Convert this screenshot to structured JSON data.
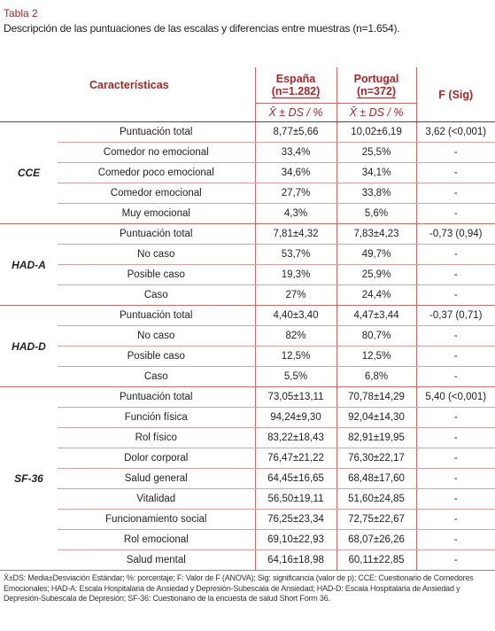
{
  "caption": {
    "label": "Tabla 2",
    "title": "Descripción de las puntuaciones de las escalas y diferencias entre muestras (n=1.654)."
  },
  "table": {
    "header": {
      "characteristics": "Características",
      "spain": "España",
      "spain_n": "(n=1.282)",
      "portugal": "Portugal",
      "portugal_n": "(n=372)",
      "f": "F (Sig)",
      "stat_spain": "X̄ ± DS / %",
      "stat_portugal": "X̄ ± DS / %"
    },
    "groups": [
      {
        "label": "CCE",
        "rows": [
          [
            "Puntuación total",
            "8,77±5,66",
            "10,02±6,19",
            "3,62 (<0,001)"
          ],
          [
            "Comedor no emocional",
            "33,4%",
            "25,5%",
            "-"
          ],
          [
            "Comedor poco emocional",
            "34,6%",
            "34,1%",
            "-"
          ],
          [
            "Comedor emocional",
            "27,7%",
            "33,8%",
            "-"
          ],
          [
            "Muy emocional",
            "4,3%",
            "5,6%",
            "-"
          ]
        ]
      },
      {
        "label": "HAD-A",
        "rows": [
          [
            "Puntuación total",
            "7,81±4,32",
            "7,83±4,23",
            "-0,73 (0,94)"
          ],
          [
            "No caso",
            "53,7%",
            "49,7%",
            "-"
          ],
          [
            "Posible caso",
            "19,3%",
            "25,9%",
            "-"
          ],
          [
            "Caso",
            "27%",
            "24,4%",
            "-"
          ]
        ]
      },
      {
        "label": "HAD-D",
        "rows": [
          [
            "Puntuación total",
            "4,40±3,40",
            "4,47±3,44",
            "-0,37 (0,71)"
          ],
          [
            "No caso",
            "82%",
            "80,7%",
            "-"
          ],
          [
            "Posible caso",
            "12,5%",
            "12,5%",
            "-"
          ],
          [
            "Caso",
            "5,5%",
            "6,8%",
            "-"
          ]
        ]
      },
      {
        "label": "SF-36",
        "rows": [
          [
            "Puntuación total",
            "73,05±13,11",
            "70,78±14,29",
            "5,40 (<0,001)"
          ],
          [
            "Función física",
            "94,24±9,30",
            "92,04±14,30",
            "-"
          ],
          [
            "Rol físico",
            "83,22±18,43",
            "82,91±19,95",
            "-"
          ],
          [
            "Dolor corporal",
            "76,47±21,22",
            "76,30±22,17",
            "-"
          ],
          [
            "Salud general",
            "64,45±16,65",
            "68,48±17,60",
            "-"
          ],
          [
            "Vitalidad",
            "56,50±19,11",
            "51,60±24,85",
            "-"
          ],
          [
            "Funcionamiento social",
            "76,25±23,34",
            "72,75±22,67",
            "-"
          ],
          [
            "Rol emocional",
            "69,10±22,93",
            "68,07±26,26",
            "-"
          ],
          [
            "Salud mental",
            "64,16±18,98",
            "60,11±22,85",
            "-"
          ]
        ]
      }
    ]
  },
  "footnote": "X̄±DS: Media±Desviación Estándar; %: porcentaje; F: Valor de F (ANOVA); Sig: significancia (valor de p); CCE: Cuestionario de Comedores Emocionales; HAD-A: Escala Hospitalaria de Ansiedad y Depresión-Subescala de Ansiedad; HAD-D: Escala Hospitalaria de Ansiedad y Depresión-Subescala de Depresión; SF-36: Cuestionario de la encuesta de salud Short Form 36."
}
